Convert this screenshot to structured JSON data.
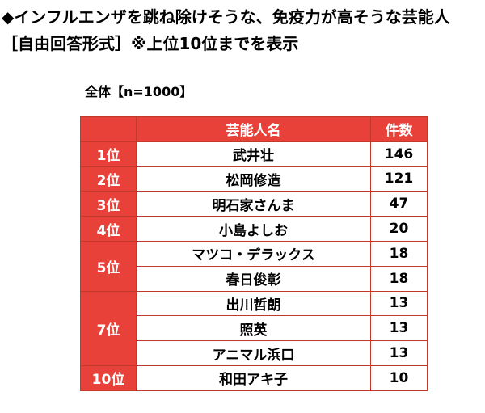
{
  "title": {
    "line1": "◆インフルエンザを跳ね除けそうな、免疫力が高そうな芸能人",
    "line2": "［自由回答形式］※上位10位までを表示"
  },
  "sample_label": "全体【n=1000】",
  "table": {
    "headers": {
      "rank": "",
      "name": "芸能人名",
      "count": "件数"
    },
    "rows": [
      {
        "rank": "1位",
        "name": "武井壮",
        "count": "146"
      },
      {
        "rank": "2位",
        "name": "松岡修造",
        "count": "121"
      },
      {
        "rank": "3位",
        "name": "明石家さんま",
        "count": "47"
      },
      {
        "rank": "4位",
        "name": "小島よしお",
        "count": "20"
      },
      {
        "rank": "5位",
        "name": "マツコ・デラックス",
        "count": "18"
      },
      {
        "rank": "",
        "name": "春日俊彰",
        "count": "18"
      },
      {
        "rank": "7位",
        "name": "出川哲朗",
        "count": "13"
      },
      {
        "rank": "",
        "name": "照英",
        "count": "13"
      },
      {
        "rank": "",
        "name": "アニマル浜口",
        "count": "13"
      },
      {
        "rank": "10位",
        "name": "和田アキ子",
        "count": "10"
      }
    ]
  },
  "colors": {
    "accent": "#e8413a",
    "border": "#c0392b",
    "text": "#000000",
    "header_text": "#ffffff"
  }
}
